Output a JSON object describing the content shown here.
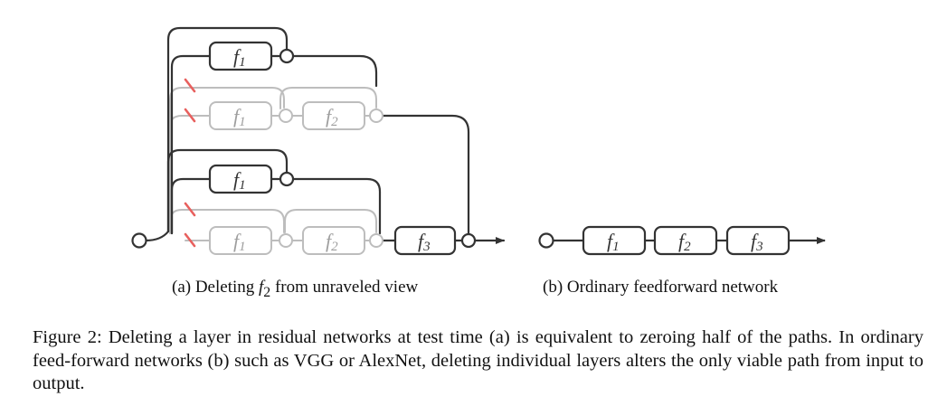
{
  "diagram_a": {
    "box_labels": {
      "f1": "f",
      "f1_sub": "1",
      "f2": "f",
      "f2_sub": "2",
      "f3": "f",
      "f3_sub": "3"
    },
    "caption_prefix": "(a) Deleting ",
    "caption_symbol": "f",
    "caption_symbol_sub": "2",
    "caption_suffix": " from unraveled view"
  },
  "diagram_b": {
    "caption": "(b) Ordinary feedforward network"
  },
  "colors": {
    "active": "#333333",
    "deleted": "#bdbdbd",
    "cut_mark": "#e8605e"
  },
  "figure_caption": "Figure 2: Deleting a layer in residual networks at test time (a) is equivalent to zeroing half of the paths. In ordinary feed-forward networks (b) such as VGG or AlexNet, deleting individual layers alters the only viable path from input to output."
}
